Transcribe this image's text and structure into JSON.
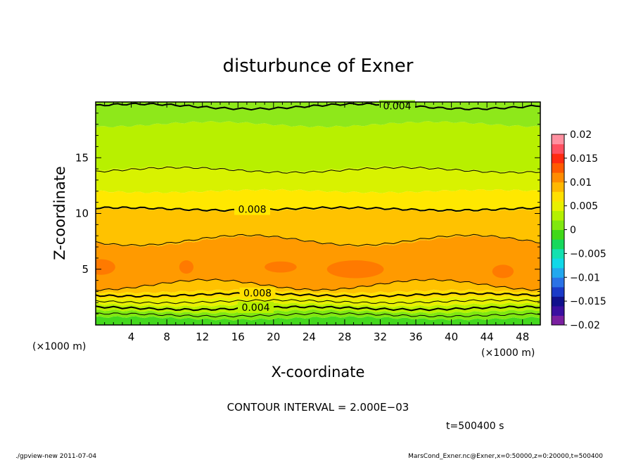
{
  "chart_data": {
    "type": "heatmap",
    "title": "disturbunce of Exner",
    "xlabel": "X-coordinate",
    "ylabel": "Z-coordinate",
    "x_unit": "(×1000 m)",
    "y_unit": "(×1000 m)",
    "xlim": [
      0,
      50
    ],
    "ylim": [
      0,
      20
    ],
    "x_ticks": [
      4,
      8,
      12,
      16,
      20,
      24,
      28,
      32,
      36,
      40,
      44,
      48
    ],
    "y_ticks": [
      5,
      10,
      15
    ],
    "colorbar": {
      "min": -0.02,
      "max": 0.02,
      "ticks": [
        "0.02",
        "0.015",
        "0.01",
        "0.005",
        "0",
        "−0.005",
        "−0.01",
        "−0.015",
        "−0.02"
      ],
      "tick_values": [
        0.02,
        0.015,
        0.01,
        0.005,
        0,
        -0.005,
        -0.01,
        -0.015,
        -0.02
      ],
      "colors": [
        "#7a1fa0",
        "#3a0fa0",
        "#10108c",
        "#1a3ac8",
        "#2a72e6",
        "#22a8ee",
        "#10d8e8",
        "#12e0b0",
        "#16d85c",
        "#40d818",
        "#80e810",
        "#b4f000",
        "#e8f000",
        "#ffe000",
        "#ffb800",
        "#ff8c00",
        "#ff5a00",
        "#ff2a10",
        "#ff5060",
        "#ff90a0"
      ]
    },
    "bands": [
      {
        "z0": 0.0,
        "z1": 0.6,
        "value": 0.0015,
        "color": "#44d81e"
      },
      {
        "z0": 0.6,
        "z1": 1.2,
        "value": 0.0035,
        "color": "#80e810"
      },
      {
        "z0": 1.2,
        "z1": 1.8,
        "value": 0.0055,
        "color": "#b8f000"
      },
      {
        "z0": 1.8,
        "z1": 2.4,
        "value": 0.0075,
        "color": "#e8f000"
      },
      {
        "z0": 2.4,
        "z1": 3.0,
        "value": 0.0085,
        "color": "#ffe000"
      },
      {
        "z0": 3.0,
        "z1": 3.6,
        "value": 0.0095,
        "color": "#ffc200"
      },
      {
        "z0": 3.6,
        "z1": 7.5,
        "value": 0.0105,
        "color": "#ff9a00"
      },
      {
        "z0": 7.5,
        "z1": 10.3,
        "value": 0.009,
        "color": "#ffc200"
      },
      {
        "z0": 10.3,
        "z1": 12.0,
        "value": 0.0075,
        "color": "#ffe800"
      },
      {
        "z0": 12.0,
        "z1": 14.0,
        "value": 0.0065,
        "color": "#d8f200"
      },
      {
        "z0": 14.0,
        "z1": 18.0,
        "value": 0.005,
        "color": "#b8f000"
      },
      {
        "z0": 18.0,
        "z1": 20.0,
        "value": 0.0038,
        "color": "#8ee81a"
      }
    ],
    "contours": [
      {
        "z": 0.9,
        "level": 0.002,
        "label": ""
      },
      {
        "z": 1.5,
        "level": 0.004,
        "label": "0.004",
        "label_x": 18.0
      },
      {
        "z": 2.1,
        "level": 0.006,
        "label": ""
      },
      {
        "z": 2.7,
        "level": 0.008,
        "label": "0.008",
        "label_x": 18.2
      },
      {
        "z": 3.6,
        "level": 0.01,
        "label": ""
      },
      {
        "z": 7.6,
        "level": 0.01,
        "label": ""
      },
      {
        "z": 10.4,
        "level": 0.008,
        "label": "0.008",
        "label_x": 17.6
      },
      {
        "z": 13.9,
        "level": 0.006,
        "label": ""
      },
      {
        "z": 19.6,
        "level": 0.004,
        "label": "0.004",
        "label_x": 33.9
      }
    ],
    "contour_interval_text": "CONTOUR INTERVAL = 2.000E−03",
    "time_text": "t=500400 s"
  },
  "footer": {
    "left": "./gpview-new   2011-07-04",
    "right": "MarsCond_Exner.nc@Exner,x=0:50000,z=0:20000,t=500400"
  }
}
